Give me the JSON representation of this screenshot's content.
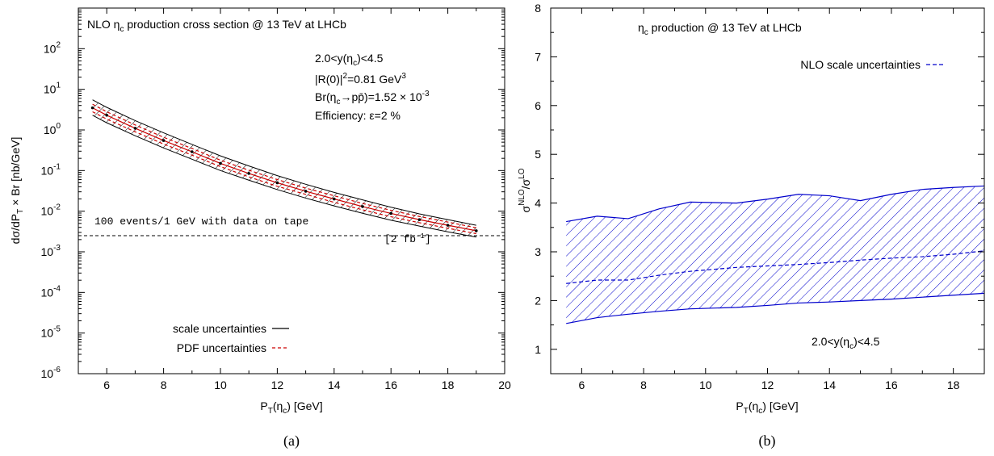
{
  "chart_data": [
    {
      "type": "line",
      "caption": "(a)",
      "title": "NLO η_c production cross section @ 13 TeV  at LHCb",
      "xlabel": "P_T(η_c) [GeV]",
      "ylabel": "dσ/dP_T × Br [nb/GeV]",
      "xlim": [
        5,
        20
      ],
      "ylim_log10": [
        -6,
        3
      ],
      "log_y": true,
      "x_ticks": [
        "6",
        "8",
        "10",
        "12",
        "14",
        "16",
        "18",
        "20"
      ],
      "y_ticks": [
        {
          "base": "10",
          "exp": "-6"
        },
        {
          "base": "10",
          "exp": "-5"
        },
        {
          "base": "10",
          "exp": "-4"
        },
        {
          "base": "10",
          "exp": "-3"
        },
        {
          "base": "10",
          "exp": "-2"
        },
        {
          "base": "10",
          "exp": "-1"
        },
        {
          "base": "10",
          "exp": "0"
        },
        {
          "base": "10",
          "exp": "1"
        },
        {
          "base": "10",
          "exp": "2"
        }
      ],
      "annotations": {
        "rapidity": "2.0<y(η_c)<4.5",
        "wavefunction": "|R(0)|²=0.81 GeV³",
        "branching": "Br(η_c→pp̄)=1.52 × 10⁻³",
        "efficiency": "Efficiency: ε=2 %",
        "threshold_label": "100 events/1 GeV with data on tape",
        "lumi_label": "[2 fb⁻¹]"
      },
      "threshold_y": 0.0025,
      "legend": [
        {
          "label": "scale uncertainties",
          "color": "#000000",
          "style": "solid"
        },
        {
          "label": "PDF uncertainties",
          "color": "#cc0000",
          "style": "dashed"
        }
      ],
      "legend_position": "bottom-left",
      "x": [
        5.5,
        6,
        7,
        8,
        9,
        10,
        11,
        12,
        13,
        14,
        15,
        16,
        17,
        18,
        19
      ],
      "series": [
        {
          "name": "central",
          "values": [
            3.5,
            2.3,
            1.1,
            0.55,
            0.29,
            0.15,
            0.085,
            0.05,
            0.031,
            0.02,
            0.013,
            0.0088,
            0.0062,
            0.0045,
            0.0033
          ]
        },
        {
          "name": "scale upper",
          "values": [
            5.5,
            3.6,
            1.7,
            0.85,
            0.44,
            0.23,
            0.13,
            0.075,
            0.046,
            0.029,
            0.019,
            0.0125,
            0.0086,
            0.0062,
            0.0045
          ]
        },
        {
          "name": "scale lower",
          "values": [
            2.3,
            1.5,
            0.72,
            0.36,
            0.19,
            0.1,
            0.058,
            0.034,
            0.021,
            0.0135,
            0.0089,
            0.006,
            0.0043,
            0.0031,
            0.0023
          ]
        },
        {
          "name": "PDF upper",
          "values": [
            4.3,
            2.8,
            1.33,
            0.66,
            0.35,
            0.18,
            0.102,
            0.06,
            0.037,
            0.024,
            0.0155,
            0.0105,
            0.0074,
            0.0054,
            0.0039
          ]
        },
        {
          "name": "PDF lower",
          "values": [
            2.8,
            1.85,
            0.9,
            0.45,
            0.24,
            0.125,
            0.07,
            0.041,
            0.026,
            0.0165,
            0.0108,
            0.0073,
            0.0052,
            0.0038,
            0.0028
          ]
        }
      ]
    },
    {
      "type": "area",
      "caption": "(b)",
      "title": "η_c production @ 13 TeV at LHCb",
      "xlabel": "P_T(η_c) [GeV]",
      "ylabel": "σ^NLO/σ^LO",
      "xlim": [
        5,
        19
      ],
      "ylim": [
        0.5,
        8
      ],
      "x_ticks": [
        "6",
        "8",
        "10",
        "12",
        "14",
        "16",
        "18"
      ],
      "y_ticks": [
        "1",
        "2",
        "3",
        "4",
        "5",
        "6",
        "7",
        "8"
      ],
      "annotation": "2.0<y(η_c)<4.5",
      "legend": [
        {
          "label": "NLO scale uncertainties",
          "color": "#0000cc",
          "style": "dashed"
        }
      ],
      "legend_position": "top-right",
      "x": [
        5.5,
        6.5,
        7.5,
        8.5,
        9.5,
        11,
        12,
        13,
        14,
        15,
        16,
        17,
        18,
        19
      ],
      "series": [
        {
          "name": "upper",
          "values": [
            3.62,
            3.73,
            3.68,
            3.88,
            4.02,
            4.0,
            4.08,
            4.18,
            4.15,
            4.05,
            4.18,
            4.28,
            4.32,
            4.35
          ]
        },
        {
          "name": "central",
          "values": [
            2.35,
            2.42,
            2.42,
            2.52,
            2.6,
            2.68,
            2.71,
            2.74,
            2.78,
            2.83,
            2.87,
            2.9,
            2.95,
            3.02
          ]
        },
        {
          "name": "lower",
          "values": [
            1.53,
            1.65,
            1.72,
            1.78,
            1.83,
            1.86,
            1.9,
            1.95,
            1.97,
            2.0,
            2.03,
            2.07,
            2.11,
            2.15
          ]
        }
      ]
    }
  ]
}
